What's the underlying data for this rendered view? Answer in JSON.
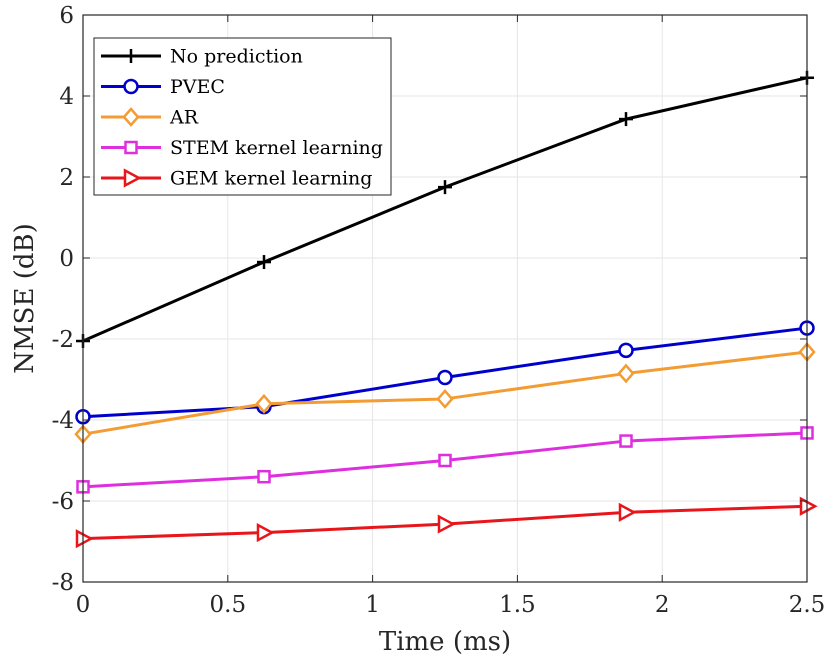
{
  "chart_data": {
    "type": "line",
    "xlabel": "Time (ms)",
    "ylabel": "NMSE (dB)",
    "xlim": [
      0,
      2.5
    ],
    "ylim": [
      -8,
      6
    ],
    "xticks": [
      0,
      0.5,
      1,
      1.5,
      2,
      2.5
    ],
    "xtick_labels": [
      "0",
      "0.5",
      "1",
      "1.5",
      "2",
      "2.5"
    ],
    "yticks": [
      -8,
      -6,
      -4,
      -2,
      0,
      2,
      4,
      6
    ],
    "ytick_labels": [
      "-8",
      "-6",
      "-4",
      "-2",
      "0",
      "2",
      "4",
      "6"
    ],
    "grid": true,
    "legend_position": "top-left",
    "x": [
      0,
      0.625,
      1.25,
      1.875,
      2.5
    ],
    "series": [
      {
        "name": "No prediction",
        "color": "#000000",
        "marker": "plus",
        "values": [
          -2.05,
          -0.1,
          1.75,
          3.43,
          4.45
        ]
      },
      {
        "name": "PVEC",
        "color": "#0000CD",
        "marker": "circle",
        "values": [
          -3.92,
          -3.67,
          -2.95,
          -2.28,
          -1.73
        ]
      },
      {
        "name": "AR",
        "color": "#F39C34",
        "marker": "diamond",
        "values": [
          -4.35,
          -3.6,
          -3.48,
          -2.85,
          -2.32
        ]
      },
      {
        "name": "STEM kernel learning",
        "color": "#DE2FDE",
        "marker": "square",
        "values": [
          -5.65,
          -5.4,
          -5.0,
          -4.52,
          -4.32
        ]
      },
      {
        "name": "GEM kernel learning",
        "color": "#E8161B",
        "marker": "triangle-right",
        "values": [
          -6.93,
          -6.78,
          -6.57,
          -6.28,
          -6.13
        ]
      }
    ]
  }
}
